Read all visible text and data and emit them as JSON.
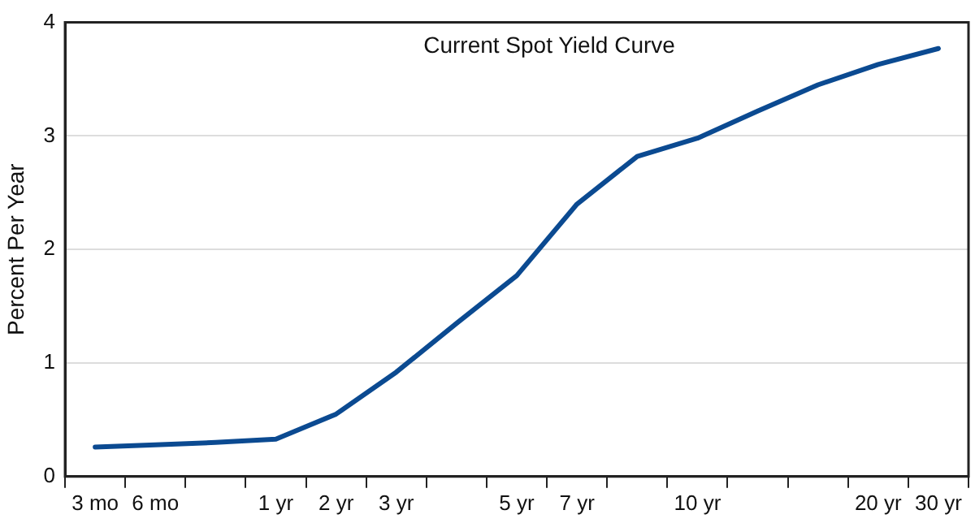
{
  "chart_data": {
    "type": "line",
    "title": "Current Spot Yield Curve",
    "ylabel": "Percent Per Year",
    "categories": [
      "3 mo",
      "6 mo",
      null,
      "1 yr",
      "2 yr",
      "3 yr",
      null,
      "5 yr",
      "7 yr",
      null,
      "10 yr",
      null,
      null,
      "20 yr",
      "30 yr"
    ],
    "series": [
      {
        "color": "#0b4a91",
        "values": [
          0.26,
          0.28,
          0.3,
          0.33,
          0.55,
          0.92,
          1.35,
          1.77,
          2.4,
          2.82,
          2.98,
          3.22,
          3.45,
          3.63,
          3.77
        ]
      }
    ],
    "ylim": [
      0,
      4
    ],
    "yticks": [
      0,
      1,
      2,
      3,
      4
    ],
    "grid": "y",
    "legend": false,
    "marker": "none",
    "line_style": "solid"
  }
}
